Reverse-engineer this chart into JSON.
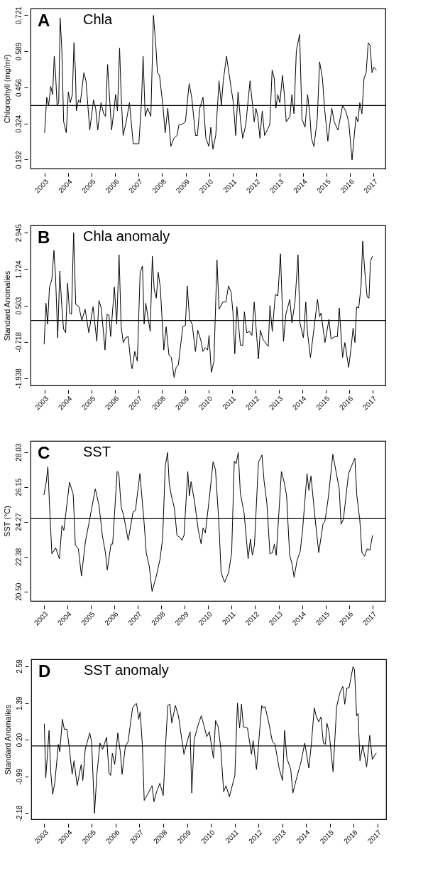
{
  "chart_data": [
    {
      "type": "line",
      "title": "Chla",
      "annotations": [
        "A"
      ],
      "ylabel": "Chlorophyll (mg/m³)",
      "xlim": [
        2002.4,
        2017.5
      ],
      "xticks": [
        2003,
        2004,
        2005,
        2006,
        2007,
        2008,
        2009,
        2010,
        2011,
        2012,
        2013,
        2014,
        2015,
        2016,
        2017
      ],
      "ylim": [
        0.159,
        0.745
      ],
      "yticks": [
        0.192,
        0.324,
        0.456,
        0.589,
        0.721
      ],
      "ref_lines": [
        {
          "axis": "y",
          "value": 0.39
        }
      ],
      "x": [
        2003.0,
        2003.09,
        2003.17,
        2003.26,
        2003.34,
        2003.41,
        2003.47,
        2003.53,
        2003.6,
        2003.66,
        2003.73,
        2003.81,
        2003.92,
        2004.01,
        2004.09,
        2004.18,
        2004.25,
        2004.31,
        2004.35,
        2004.44,
        2004.52,
        2004.67,
        2004.76,
        2004.92,
        2005.08,
        2005.17,
        2005.26,
        2005.4,
        2005.51,
        2005.59,
        2005.68,
        2005.74,
        2005.85,
        2005.96,
        2006.02,
        2006.1,
        2006.19,
        2006.26,
        2006.34,
        2006.47,
        2006.61,
        2006.77,
        2007.01,
        2007.12,
        2007.19,
        2007.28,
        2007.38,
        2007.52,
        2007.63,
        2007.74,
        2007.8,
        2007.89,
        2008.03,
        2008.13,
        2008.24,
        2008.37,
        2008.5,
        2008.63,
        2008.72,
        2008.83,
        2008.99,
        2009.15,
        2009.26,
        2009.42,
        2009.5,
        2009.6,
        2009.74,
        2009.86,
        2009.99,
        2010.07,
        2010.16,
        2010.28,
        2010.42,
        2010.52,
        2010.6,
        2010.74,
        2010.84,
        2011.03,
        2011.13,
        2011.23,
        2011.34,
        2011.43,
        2011.56,
        2011.74,
        2011.92,
        2011.99,
        2012.07,
        2012.16,
        2012.26,
        2012.36,
        2012.58,
        2012.68,
        2012.77,
        2012.84,
        2012.92,
        2013.01,
        2013.12,
        2013.2,
        2013.28,
        2013.44,
        2013.52,
        2013.61,
        2013.71,
        2013.85,
        2013.95,
        2014.08,
        2014.19,
        2014.28,
        2014.35,
        2014.46,
        2014.6,
        2014.7,
        2014.82,
        2014.91,
        2015.05,
        2015.22,
        2015.32,
        2015.48,
        2015.68,
        2015.81,
        2015.94,
        2016.08,
        2016.25,
        2016.33,
        2016.41,
        2016.5,
        2016.59,
        2016.68,
        2016.77,
        2016.85,
        2016.93,
        2017.01,
        2017.12
      ],
      "series": [
        {
          "color": "#000000",
          "values": [
            0.29,
            0.42,
            0.39,
            0.46,
            0.43,
            0.57,
            0.5,
            0.39,
            0.4,
            0.71,
            0.6,
            0.33,
            0.29,
            0.44,
            0.4,
            0.43,
            0.62,
            0.52,
            0.37,
            0.41,
            0.4,
            0.51,
            0.48,
            0.3,
            0.41,
            0.38,
            0.3,
            0.4,
            0.36,
            0.35,
            0.54,
            0.45,
            0.3,
            0.38,
            0.43,
            0.37,
            0.6,
            0.42,
            0.28,
            0.33,
            0.4,
            0.25,
            0.25,
            0.4,
            0.57,
            0.35,
            0.38,
            0.35,
            0.72,
            0.6,
            0.51,
            0.5,
            0.39,
            0.29,
            0.38,
            0.24,
            0.27,
            0.28,
            0.32,
            0.32,
            0.33,
            0.47,
            0.42,
            0.28,
            0.28,
            0.38,
            0.42,
            0.27,
            0.24,
            0.31,
            0.23,
            0.28,
            0.48,
            0.39,
            0.48,
            0.57,
            0.51,
            0.4,
            0.28,
            0.44,
            0.33,
            0.27,
            0.32,
            0.48,
            0.33,
            0.38,
            0.35,
            0.27,
            0.37,
            0.28,
            0.32,
            0.52,
            0.49,
            0.38,
            0.43,
            0.4,
            0.5,
            0.43,
            0.33,
            0.35,
            0.43,
            0.36,
            0.59,
            0.65,
            0.34,
            0.31,
            0.43,
            0.36,
            0.27,
            0.24,
            0.34,
            0.55,
            0.49,
            0.38,
            0.26,
            0.38,
            0.33,
            0.3,
            0.39,
            0.37,
            0.33,
            0.19,
            0.35,
            0.33,
            0.4,
            0.36,
            0.49,
            0.51,
            0.62,
            0.61,
            0.51,
            0.53,
            0.52
          ]
        }
      ]
    },
    {
      "type": "line",
      "title": "Chla anomaly",
      "annotations": [
        "B"
      ],
      "ylabel": "Standard Anomalies",
      "xlim": [
        2002.4,
        2017.55
      ],
      "xticks": [
        2003,
        2004,
        2005,
        2006,
        2007,
        2008,
        2009,
        2010,
        2011,
        2012,
        2013,
        2014,
        2015,
        2016,
        2017
      ],
      "ylim": [
        -2.18,
        3.19
      ],
      "yticks": [
        -1.938,
        -0.718,
        0.503,
        1.724,
        2.945
      ],
      "ref_lines": [
        {
          "axis": "y",
          "value": 0
        }
      ],
      "x": [
        2002.98,
        2003.06,
        2003.13,
        2003.21,
        2003.31,
        2003.4,
        2003.47,
        2003.56,
        2003.65,
        2003.73,
        2003.81,
        2003.9,
        2003.98,
        2004.07,
        2004.15,
        2004.24,
        2004.33,
        2004.47,
        2004.59,
        2004.73,
        2004.89,
        2005.07,
        2005.23,
        2005.32,
        2005.42,
        2005.58,
        2005.67,
        2005.75,
        2005.82,
        2005.98,
        2006.08,
        2006.18,
        2006.27,
        2006.36,
        2006.46,
        2006.57,
        2006.68,
        2006.74,
        2006.85,
        2006.96,
        2007.08,
        2007.18,
        2007.25,
        2007.32,
        2007.51,
        2007.6,
        2007.68,
        2007.77,
        2007.85,
        2007.94,
        2008.09,
        2008.19,
        2008.31,
        2008.41,
        2008.53,
        2008.62,
        2008.71,
        2008.9,
        2009.01,
        2009.09,
        2009.19,
        2009.3,
        2009.44,
        2009.54,
        2009.67,
        2009.76,
        2009.86,
        2009.96,
        2010.02,
        2010.12,
        2010.23,
        2010.36,
        2010.45,
        2010.61,
        2010.74,
        2010.85,
        2010.96,
        2011.04,
        2011.12,
        2011.21,
        2011.36,
        2011.46,
        2011.53,
        2011.63,
        2011.74,
        2011.85,
        2011.95,
        2012.04,
        2012.13,
        2012.21,
        2012.34,
        2012.55,
        2012.62,
        2012.72,
        2012.85,
        2012.96,
        2013.07,
        2013.2,
        2013.3,
        2013.47,
        2013.56,
        2013.69,
        2013.82,
        2013.9,
        2014.05,
        2014.15,
        2014.22,
        2014.35,
        2014.53,
        2014.65,
        2014.74,
        2014.8,
        2014.97,
        2015.14,
        2015.23,
        2015.4,
        2015.5,
        2015.58,
        2015.72,
        2015.82,
        2015.98,
        2016.08,
        2016.17,
        2016.25,
        2016.32,
        2016.41,
        2016.51,
        2016.58,
        2016.68,
        2016.77,
        2016.85,
        2016.91,
        2017.0
      ],
      "series": [
        {
          "color": "#000000",
          "values": [
            -0.8,
            0.58,
            -0.12,
            1.12,
            1.37,
            2.35,
            1.45,
            -0.58,
            1.66,
            0.54,
            -0.29,
            -0.41,
            1.25,
            0.25,
            0.21,
            2.95,
            0.54,
            0.46,
            0.0,
            0.38,
            -0.41,
            0.46,
            -0.7,
            0.67,
            0.42,
            -0.99,
            0.21,
            0.17,
            -0.54,
            1.12,
            -0.12,
            2.2,
            -0.21,
            -0.74,
            -0.58,
            -0.54,
            -1.41,
            -1.62,
            -1.04,
            -1.37,
            1.62,
            1.83,
            -0.12,
            0.58,
            -0.37,
            2.16,
            1.04,
            0.75,
            1.62,
            1.12,
            -0.99,
            -0.21,
            -1.16,
            -1.24,
            -1.91,
            -1.57,
            -1.49,
            -0.21,
            -0.17,
            1.16,
            0.04,
            -0.12,
            -1.04,
            -0.33,
            -0.66,
            -1.04,
            -0.91,
            -0.99,
            -0.5,
            -1.74,
            -1.37,
            2.03,
            0.38,
            0.62,
            0.62,
            1.16,
            0.96,
            0.29,
            -1.12,
            0.46,
            -0.83,
            -0.83,
            0.29,
            -0.41,
            -0.37,
            -0.5,
            0.62,
            -0.37,
            -1.29,
            -0.33,
            -0.66,
            -0.87,
            0.5,
            -0.37,
            0.87,
            0.83,
            2.24,
            -0.7,
            0.21,
            0.71,
            -0.08,
            0.62,
            2.2,
            -0.08,
            -0.58,
            0.62,
            -0.37,
            -1.24,
            -0.08,
            0.71,
            0.13,
            0.25,
            -0.74,
            0.04,
            -0.62,
            -0.54,
            -0.54,
            0.42,
            -1.24,
            -0.74,
            -1.57,
            -0.95,
            -0.25,
            -0.74,
            0.46,
            0.42,
            1.16,
            2.66,
            1.54,
            0.79,
            0.75,
            1.99,
            2.16
          ]
        }
      ]
    },
    {
      "type": "line",
      "title": "SST",
      "annotations": [
        "C"
      ],
      "ylabel": "SST (°C)",
      "xlim": [
        2002.43,
        2017.55
      ],
      "xticks": [
        2003,
        2004,
        2005,
        2006,
        2007,
        2008,
        2009,
        2010,
        2011,
        2012,
        2013,
        2014,
        2015,
        2016,
        2017
      ],
      "ylim": [
        19.99,
        28.63
      ],
      "yticks": [
        {
          "value": 20.5,
          "label": "20.50"
        },
        22.38,
        24.27,
        26.15,
        28.03
      ],
      "ref_lines": [
        {
          "axis": "y",
          "value": 24.43
        }
      ],
      "x": [
        2003.0,
        2003.1,
        2003.17,
        2003.24,
        2003.34,
        2003.5,
        2003.66,
        2003.77,
        2003.85,
        2004.09,
        2004.25,
        2004.34,
        2004.47,
        2004.6,
        2004.77,
        2004.9,
        2005.19,
        2005.35,
        2005.49,
        2005.62,
        2005.7,
        2005.86,
        2005.93,
        2006.12,
        2006.19,
        2006.29,
        2006.4,
        2006.59,
        2006.8,
        2006.9,
        2007.09,
        2007.27,
        2007.36,
        2007.49,
        2007.61,
        2007.79,
        2007.95,
        2008.06,
        2008.17,
        2008.27,
        2008.34,
        2008.43,
        2008.56,
        2008.67,
        2008.81,
        2008.88,
        2008.97,
        2009.13,
        2009.2,
        2009.27,
        2009.42,
        2009.58,
        2009.7,
        2009.78,
        2009.88,
        2010.07,
        2010.21,
        2010.31,
        2010.45,
        2010.55,
        2010.7,
        2010.87,
        2011.0,
        2011.11,
        2011.19,
        2011.28,
        2011.37,
        2011.53,
        2011.7,
        2011.8,
        2011.88,
        2011.97,
        2012.14,
        2012.29,
        2012.38,
        2012.5,
        2012.63,
        2012.74,
        2012.82,
        2012.9,
        2013.12,
        2013.25,
        2013.34,
        2013.47,
        2013.56,
        2013.66,
        2013.79,
        2013.92,
        2014.02,
        2014.21,
        2014.29,
        2014.38,
        2014.53,
        2014.71,
        2014.89,
        2014.98,
        2015.12,
        2015.31,
        2015.49,
        2015.58,
        2015.66,
        2015.76,
        2015.98,
        2016.13,
        2016.25,
        2016.33,
        2016.46,
        2016.55,
        2016.66,
        2016.77,
        2016.89,
        2017.0
      ],
      "series": [
        {
          "color": "#000000",
          "values": [
            25.71,
            26.4,
            27.24,
            25.13,
            22.53,
            22.86,
            22.26,
            24.06,
            23.8,
            26.4,
            25.74,
            23.0,
            22.8,
            21.33,
            23.2,
            24.06,
            26.04,
            25.13,
            23.53,
            22.6,
            21.66,
            23.06,
            23.06,
            26.98,
            26.9,
            25.07,
            24.6,
            23.26,
            24.8,
            24.87,
            26.87,
            24.2,
            22.6,
            21.86,
            20.5,
            21.33,
            22.26,
            23.4,
            27.27,
            28.0,
            26.33,
            25.67,
            25.0,
            23.53,
            23.4,
            23.26,
            23.53,
            26.98,
            25.67,
            26.44,
            25.33,
            23.8,
            23.06,
            23.93,
            23.66,
            25.8,
            27.51,
            27.07,
            24.33,
            21.53,
            20.99,
            21.53,
            22.6,
            27.54,
            27.4,
            28.0,
            25.8,
            24.73,
            22.26,
            23.33,
            22.46,
            23.0,
            27.47,
            27.87,
            26.47,
            25.27,
            22.53,
            22.6,
            23.06,
            22.46,
            26.98,
            26.33,
            25.67,
            22.46,
            22.06,
            21.26,
            22.2,
            22.66,
            23.8,
            26.87,
            25.96,
            26.74,
            24.73,
            22.6,
            24.13,
            24.33,
            25.6,
            27.91,
            26.67,
            26.07,
            24.13,
            24.4,
            26.87,
            27.34,
            27.7,
            25.73,
            24.33,
            22.6,
            22.4,
            22.8,
            22.73,
            23.53
          ]
        }
      ]
    },
    {
      "type": "line",
      "title": "SST anomaly",
      "annotations": [
        "D"
      ],
      "ylabel": "Standard Anomalies",
      "xlim": [
        2002.45,
        2017.37
      ],
      "xticks": [
        2003,
        2004,
        2005,
        2006,
        2007,
        2008,
        2009,
        2010,
        2011,
        2012,
        2013,
        2014,
        2015,
        2016,
        2017
      ],
      "ylim": [
        -2.38,
        2.81
      ],
      "yticks": [
        -2.18,
        -0.99,
        {
          "value": 0.2,
          "label": "0.20"
        },
        1.39,
        2.59
      ],
      "ref_lines": [
        {
          "axis": "y",
          "value": 0
        }
      ],
      "x": [
        2003.0,
        2003.06,
        2003.14,
        2003.2,
        2003.27,
        2003.35,
        2003.44,
        2003.59,
        2003.65,
        2003.76,
        2003.84,
        2003.95,
        2004.04,
        2004.17,
        2004.25,
        2004.38,
        2004.55,
        2004.62,
        2004.72,
        2004.91,
        2004.99,
        2005.11,
        2005.21,
        2005.34,
        2005.45,
        2005.62,
        2005.72,
        2005.79,
        2005.86,
        2005.96,
        2006.09,
        2006.2,
        2006.27,
        2006.41,
        2006.52,
        2006.71,
        2006.82,
        2006.88,
        2006.97,
        2007.03,
        2007.12,
        2007.2,
        2007.37,
        2007.53,
        2007.61,
        2007.72,
        2007.86,
        2008.0,
        2008.1,
        2008.19,
        2008.28,
        2008.36,
        2008.51,
        2008.64,
        2008.87,
        2009.03,
        2009.13,
        2009.2,
        2009.3,
        2009.46,
        2009.6,
        2009.71,
        2009.83,
        2009.94,
        2010.11,
        2010.2,
        2010.31,
        2010.42,
        2010.54,
        2010.64,
        2010.78,
        2011.01,
        2011.12,
        2011.21,
        2011.29,
        2011.37,
        2011.54,
        2011.71,
        2011.78,
        2011.92,
        2012.14,
        2012.19,
        2012.28,
        2012.43,
        2012.59,
        2012.7,
        2012.88,
        2013.02,
        2013.1,
        2013.2,
        2013.36,
        2013.45,
        2013.58,
        2013.79,
        2013.95,
        2014.12,
        2014.22,
        2014.35,
        2014.44,
        2014.54,
        2014.63,
        2014.73,
        2014.82,
        2014.88,
        2014.97,
        2015.14,
        2015.29,
        2015.42,
        2015.55,
        2015.63,
        2015.72,
        2015.81,
        2015.98,
        2016.04,
        2016.13,
        2016.19,
        2016.27,
        2016.39,
        2016.55,
        2016.68,
        2016.79,
        2016.92,
        2016.96
      ],
      "series": [
        {
          "color": "#000000",
          "values": [
            0.72,
            -1.04,
            -0.19,
            0.5,
            -0.84,
            -1.57,
            -1.21,
            0.05,
            -0.19,
            0.86,
            0.54,
            0.54,
            0.0,
            -0.92,
            -0.48,
            -1.29,
            -0.6,
            -1.12,
            -0.11,
            0.42,
            0.13,
            -2.18,
            -0.92,
            0.09,
            -0.11,
            0.28,
            -0.88,
            -0.96,
            -0.24,
            -0.6,
            0.42,
            -0.23,
            -0.92,
            0.0,
            0.13,
            1.23,
            1.35,
            1.37,
            0.86,
            1.11,
            0.05,
            -1.77,
            -1.53,
            -1.29,
            -1.81,
            -1.49,
            -1.21,
            -1.61,
            0.05,
            1.31,
            1.35,
            0.74,
            1.31,
            0.97,
            -0.27,
            0.21,
            0.46,
            -1.53,
            0.21,
            0.66,
            0.98,
            0.66,
            0.3,
            0.46,
            -0.4,
            0.82,
            0.62,
            -0.08,
            -1.49,
            -1.29,
            -1.65,
            -0.96,
            1.39,
            0.58,
            1.35,
            0.62,
            0.58,
            -0.27,
            0.17,
            -0.76,
            1.31,
            1.23,
            1.27,
            0.78,
            0.13,
            0.05,
            -0.76,
            -1.12,
            0.5,
            -0.4,
            -0.76,
            -1.53,
            -1.12,
            -0.52,
            0.09,
            -0.72,
            0.0,
            1.23,
            0.94,
            0.78,
            0.94,
            0.09,
            0.05,
            0.74,
            0.46,
            -0.84,
            1.27,
            1.71,
            1.93,
            1.35,
            1.88,
            1.88,
            2.57,
            2.48,
            0.97,
            1.05,
            -0.48,
            0.01,
            -0.68,
            0.34,
            -0.44,
            -0.27,
            -0.23
          ]
        }
      ]
    }
  ]
}
